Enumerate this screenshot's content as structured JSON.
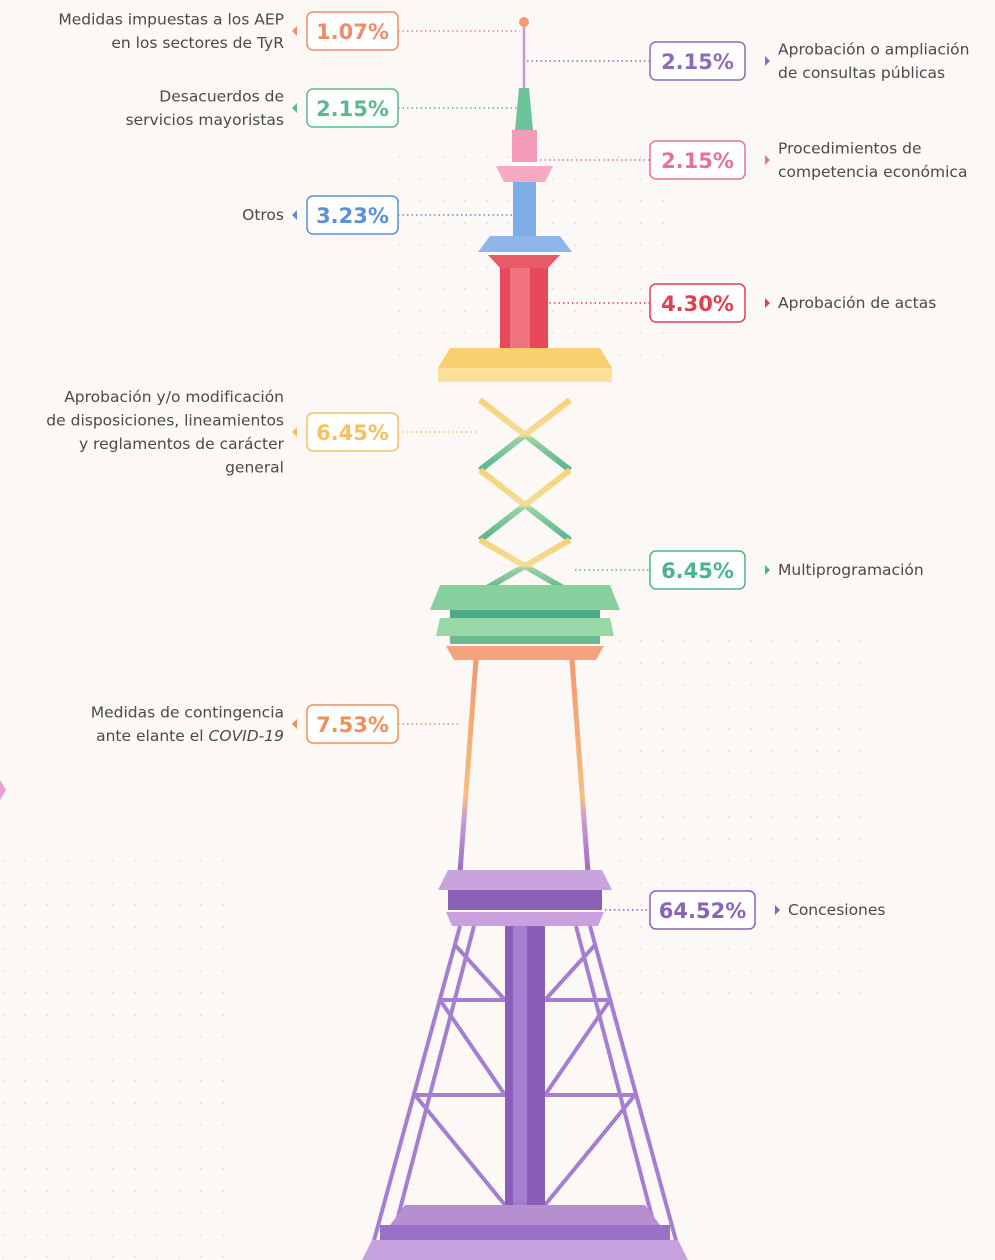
{
  "items": [
    {
      "label": [
        "Medidas impuestas a los AEP",
        "en los sectores de TyR"
      ],
      "value": "1.07%"
    },
    {
      "label": [
        "Aprobación o ampliación",
        "de consultas públicas"
      ],
      "value": "2.15%"
    },
    {
      "label": [
        "Desacuerdos de",
        "servicios mayoristas"
      ],
      "value": "2.15%"
    },
    {
      "label": [
        "Procedimientos de",
        "competencia económica"
      ],
      "value": "2.15%"
    },
    {
      "label": [
        "Otros"
      ],
      "value": "3.23%"
    },
    {
      "label": [
        "Aprobación de actas"
      ],
      "value": "4.30%"
    },
    {
      "label": [
        "Aprobación y/o modificación",
        "de disposiciones, lineamientos",
        "y reglamentos de carácter",
        "general"
      ],
      "value": "6.45%"
    },
    {
      "label": [
        "Multiprogramación"
      ],
      "value": "6.45%"
    },
    {
      "label": [
        "Medidas de contingencia",
        "ante el"
      ],
      "label_em": "COVID-19",
      "value": "7.53%"
    },
    {
      "label": [
        "Concesiones"
      ],
      "value": "64.52%"
    }
  ]
}
